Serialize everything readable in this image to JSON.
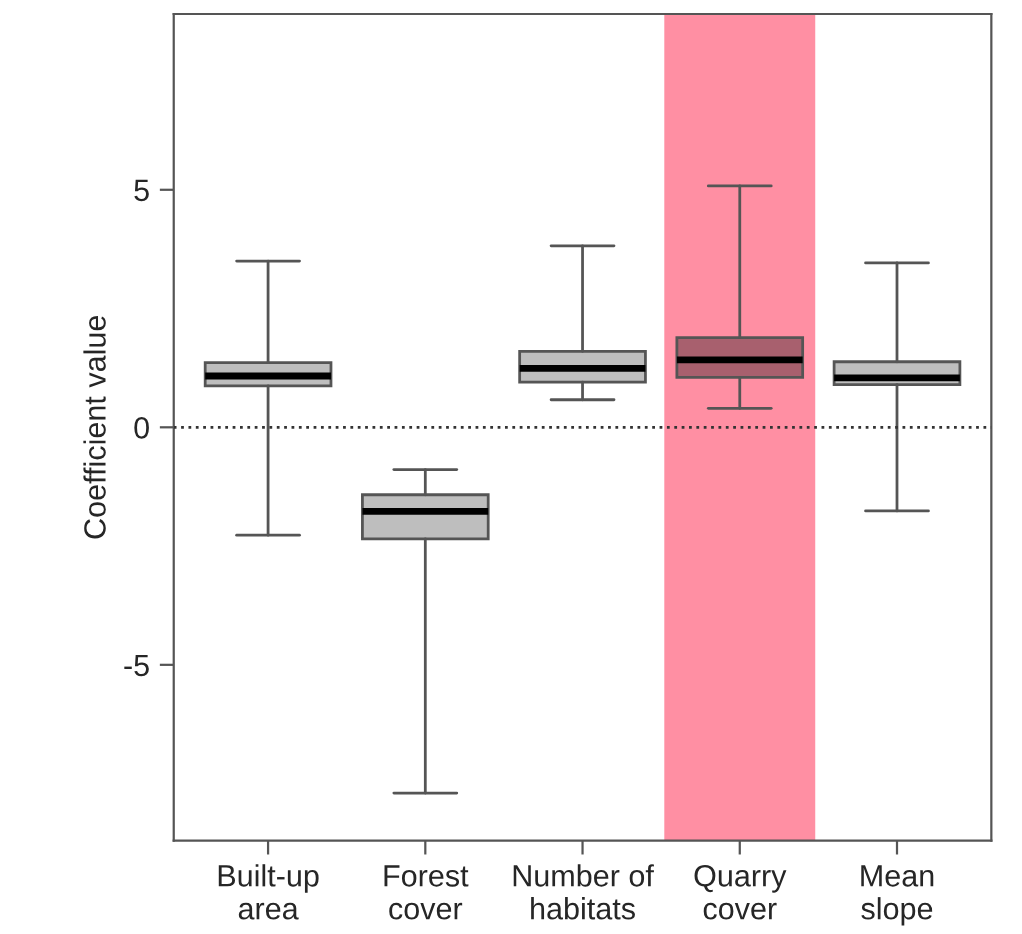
{
  "chart_data": {
    "type": "box",
    "ylabel": "Coefficient value",
    "categories": [
      "Built-up\narea",
      "Forest\ncover",
      "Number of\nhabitats",
      "Quarry\ncover",
      "Mean\nslope"
    ],
    "boxes": [
      {
        "low": -2.27,
        "q1": 0.87,
        "median": 1.08,
        "q3": 1.36,
        "high": 3.5
      },
      {
        "low": -7.7,
        "q1": -2.35,
        "median": -1.77,
        "q3": -1.42,
        "high": -0.89
      },
      {
        "low": 0.58,
        "q1": 0.95,
        "median": 1.24,
        "q3": 1.6,
        "high": 3.82
      },
      {
        "low": 0.4,
        "q1": 1.05,
        "median": 1.42,
        "q3": 1.89,
        "high": 5.08
      },
      {
        "low": -1.76,
        "q1": 0.9,
        "median": 1.04,
        "q3": 1.38,
        "high": 3.46
      }
    ],
    "colors": [
      "#bebebe",
      "#bebebe",
      "#bebebe",
      "#a8606e",
      "#bebebe"
    ],
    "ylim": [
      -8.7,
      8.7
    ],
    "yticks": [
      -5,
      0,
      5
    ],
    "ref_lines": [
      {
        "axis": "y",
        "value": 0,
        "line_style": "dotted",
        "color": "#333333"
      }
    ],
    "bands": [
      {
        "axis": "x",
        "from": "Quarry\ncover",
        "to": "Quarry\ncover",
        "color": "#ff8fa3"
      }
    ],
    "grid": false
  }
}
